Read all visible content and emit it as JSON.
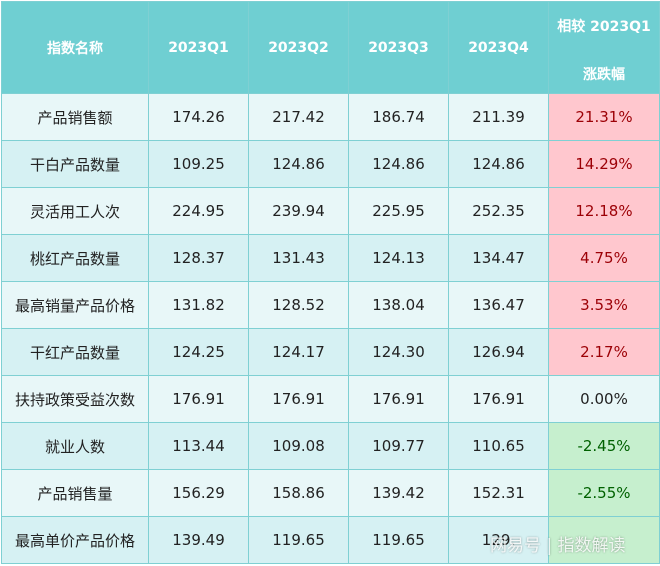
{
  "table": {
    "headers": [
      "指数名称",
      "2023Q1",
      "2023Q2",
      "2023Q3",
      "2023Q4"
    ],
    "change_header": {
      "line1": "相较 2023Q1",
      "line2": "涨跌幅"
    },
    "rows": [
      {
        "name": "产品销售额",
        "q1": "174.26",
        "q2": "217.42",
        "q3": "186.74",
        "q4": "211.39",
        "change": "21.31%",
        "trend": "up"
      },
      {
        "name": "干白产品数量",
        "q1": "109.25",
        "q2": "124.86",
        "q3": "124.86",
        "q4": "124.86",
        "change": "14.29%",
        "trend": "up"
      },
      {
        "name": "灵活用工人次",
        "q1": "224.95",
        "q2": "239.94",
        "q3": "225.95",
        "q4": "252.35",
        "change": "12.18%",
        "trend": "up"
      },
      {
        "name": "桃红产品数量",
        "q1": "128.37",
        "q2": "131.43",
        "q3": "124.13",
        "q4": "134.47",
        "change": "4.75%",
        "trend": "up"
      },
      {
        "name": "最高销量产品价格",
        "q1": "131.82",
        "q2": "128.52",
        "q3": "138.04",
        "q4": "136.47",
        "change": "3.53%",
        "trend": "up"
      },
      {
        "name": "干红产品数量",
        "q1": "124.25",
        "q2": "124.17",
        "q3": "124.30",
        "q4": "126.94",
        "change": "2.17%",
        "trend": "up"
      },
      {
        "name": "扶持政策受益次数",
        "q1": "176.91",
        "q2": "176.91",
        "q3": "176.91",
        "q4": "176.91",
        "change": "0.00%",
        "trend": "flat"
      },
      {
        "name": "就业人数",
        "q1": "113.44",
        "q2": "109.08",
        "q3": "109.77",
        "q4": "110.65",
        "change": "-2.45%",
        "trend": "down"
      },
      {
        "name": "产品销售量",
        "q1": "156.29",
        "q2": "158.86",
        "q3": "139.42",
        "q4": "152.31",
        "change": "-2.55%",
        "trend": "down"
      },
      {
        "name": "最高单价产品价格",
        "q1": "139.49",
        "q2": "119.65",
        "q3": "119.65",
        "q4": "129.",
        "change": "",
        "trend": "down"
      }
    ]
  },
  "watermark": "网易号 | 指数解读",
  "colors": {
    "header_bg": "#6fcfd2",
    "row_odd": "#e8f7f8",
    "row_even": "#d6f1f3",
    "positive_bg": "#ffc7ce",
    "positive_text": "#9c0006",
    "negative_bg": "#c6efce",
    "negative_text": "#006100"
  }
}
